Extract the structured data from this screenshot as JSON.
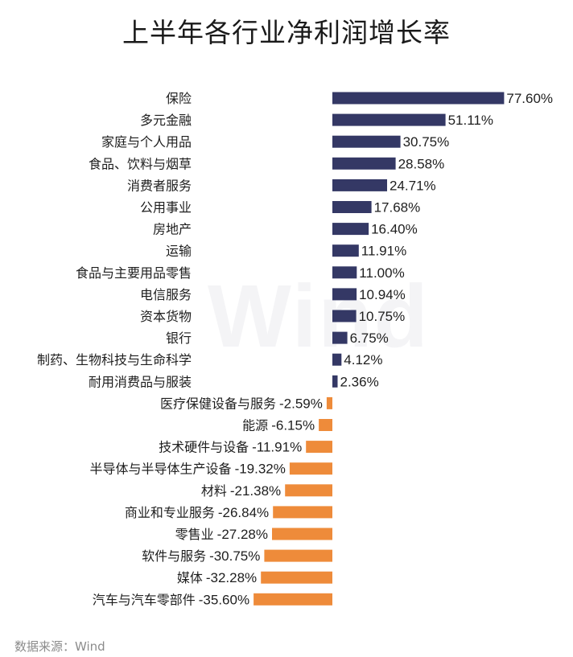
{
  "chart_data": {
    "type": "bar",
    "orientation": "horizontal",
    "title": "上半年各行业净利润增长率",
    "source": "数据来源：Wind",
    "watermark": "Wind",
    "categories": [
      "保险",
      "多元金融",
      "家庭与个人用品",
      "食品、饮料与烟草",
      "消费者服务",
      "公用事业",
      "房地产",
      "运输",
      "食品与主要用品零售",
      "电信服务",
      "资本货物",
      "银行",
      "制药、生物科技与生命科学",
      "耐用消费品与服装",
      "医疗保健设备与服务",
      "能源",
      "技术硬件与设备",
      "半导体与半导体生产设备",
      "材料",
      "商业和专业服务",
      "零售业",
      "软件与服务",
      "媒体",
      "汽车与汽车零部件"
    ],
    "values": [
      77.6,
      51.11,
      30.75,
      28.58,
      24.71,
      17.68,
      16.4,
      11.91,
      11.0,
      10.94,
      10.75,
      6.75,
      4.12,
      2.36,
      -2.59,
      -6.15,
      -11.91,
      -19.32,
      -21.38,
      -26.84,
      -27.28,
      -30.75,
      -32.28,
      -35.6
    ],
    "value_labels": [
      "77.60%",
      "51.11%",
      "30.75%",
      "28.58%",
      "24.71%",
      "17.68%",
      "16.40%",
      "11.91%",
      "11.00%",
      "10.94%",
      "10.75%",
      "6.75%",
      "4.12%",
      "2.36%",
      "-2.59%",
      "-6.15%",
      "-11.91%",
      "-19.32%",
      "-21.38%",
      "-26.84%",
      "-27.28%",
      "-30.75%",
      "-32.28%",
      "-35.60%"
    ],
    "unit": "%",
    "colors": {
      "positive": "#343865",
      "negative": "#ee8b3a"
    },
    "grid": false,
    "legend": "none"
  }
}
